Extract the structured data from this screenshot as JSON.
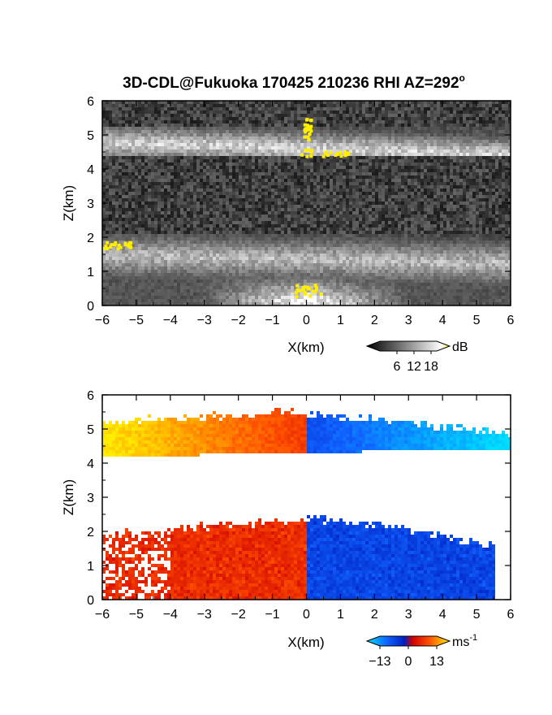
{
  "title_prefix": "3D-CDL@Fukuoka 170425 210236 RHI AZ=292",
  "title_degree": "o",
  "chart_data": [
    {
      "type": "heatmap",
      "quantity": "backscatter intensity",
      "xlabel": "X(km)",
      "ylabel": "Z(km)",
      "xlim": [
        -6,
        6
      ],
      "ylim": [
        0,
        6
      ],
      "xticks": [
        "-6",
        "-5",
        "-4",
        "-3",
        "-2",
        "-1",
        "0",
        "1",
        "2",
        "3",
        "4",
        "5",
        "6"
      ],
      "yticks": [
        "0",
        "1",
        "2",
        "3",
        "4",
        "5",
        "6"
      ],
      "colorbar": {
        "unit": "dB",
        "ticks": [
          "6",
          "12",
          "18"
        ],
        "range": [
          0,
          20
        ]
      },
      "layers": [
        {
          "z_center": 4.6,
          "z_bottom": 4.4,
          "z_top": 5.2,
          "peak": 18
        },
        {
          "z_center": 1.35,
          "z_bottom": 0.6,
          "z_top": 2.1,
          "peak": 16
        },
        {
          "z_center": 0.1,
          "z_bottom": 0.0,
          "z_top": 0.9,
          "peak": 20
        }
      ],
      "highlights": [
        {
          "x": [
            -6.0,
            -5.2
          ],
          "z": [
            1.7,
            1.9
          ],
          "value": ">18"
        },
        {
          "x": [
            -0.1,
            0.1
          ],
          "z": [
            4.9,
            5.5
          ],
          "value": ">18"
        },
        {
          "x": [
            -0.2,
            1.2
          ],
          "z": [
            4.4,
            4.6
          ],
          "value": ">18"
        },
        {
          "x": [
            -0.4,
            0.4
          ],
          "z": [
            0.3,
            0.7
          ],
          "value": ">18"
        }
      ]
    },
    {
      "type": "heatmap",
      "quantity": "radial velocity",
      "xlabel": "X(km)",
      "ylabel": "Z(km)",
      "xlim": [
        -6,
        6
      ],
      "ylim": [
        0,
        6
      ],
      "xticks": [
        "-6",
        "-5",
        "-4",
        "-3",
        "-2",
        "-1",
        "0",
        "1",
        "2",
        "3",
        "4",
        "5",
        "6"
      ],
      "yticks": [
        "0",
        "1",
        "2",
        "3",
        "4",
        "5",
        "6"
      ],
      "colorbar": {
        "unit": "ms",
        "unit_exp": "-1",
        "ticks": [
          "-13",
          "0",
          "13"
        ],
        "range": [
          -13,
          13
        ]
      },
      "layers": [
        {
          "x_range": [
            -6.0,
            6.0
          ],
          "z_bottom": 4.3,
          "z_top": 5.6,
          "v_left": 13,
          "v_right": -13
        },
        {
          "x_range": [
            -6.0,
            5.5
          ],
          "z_bottom": 0.0,
          "z_top": 2.5,
          "v_left": 5,
          "v_right": -5
        }
      ]
    }
  ]
}
